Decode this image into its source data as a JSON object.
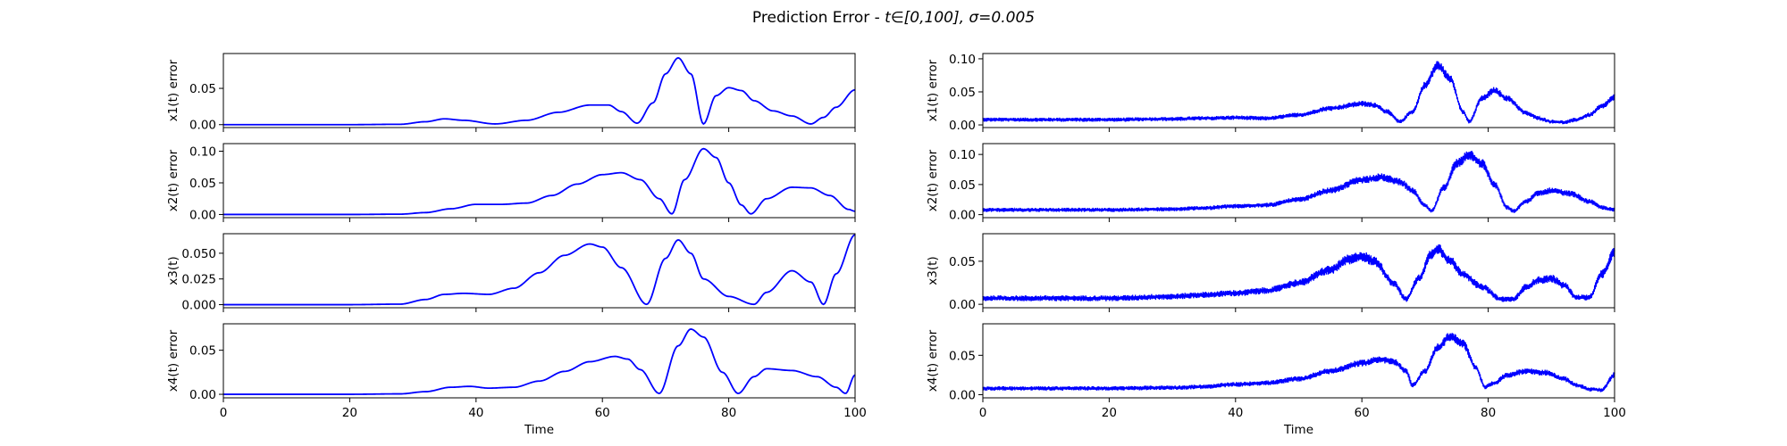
{
  "figure": {
    "title_prefix": "Prediction Error - ",
    "title_math": "t∈[0,100], σ=0.005",
    "colors": {
      "line": "#0000ff",
      "axes": "#000000",
      "background": "#ffffff"
    }
  },
  "chart_data": [
    {
      "type": "line",
      "panel": "left-row-1",
      "title": "",
      "xlabel": "",
      "ylabel": "x1(t) error",
      "xlim": [
        0,
        100
      ],
      "ylim": [
        -0.004,
        0.098
      ],
      "xticks": [
        0,
        20,
        40,
        60,
        80,
        100
      ],
      "show_xtick_labels": false,
      "yticks": [
        0.0,
        0.05
      ],
      "ytick_labels": [
        "0.00",
        "0.05"
      ],
      "noise": 0,
      "series": [
        {
          "x": [
            0,
            20,
            28,
            32,
            35,
            38,
            43,
            48,
            53,
            58,
            61,
            63,
            65.5,
            68,
            70,
            72,
            74,
            76,
            78,
            80,
            82,
            84,
            87,
            90,
            93,
            95,
            97,
            100
          ],
          "y": [
            0,
            0,
            0.0005,
            0.004,
            0.008,
            0.006,
            0.001,
            0.006,
            0.017,
            0.027,
            0.027,
            0.018,
            0.002,
            0.03,
            0.07,
            0.092,
            0.07,
            0.001,
            0.04,
            0.051,
            0.047,
            0.033,
            0.019,
            0.012,
            0.001,
            0.01,
            0.024,
            0.048
          ]
        }
      ]
    },
    {
      "type": "line",
      "panel": "left-row-2",
      "title": "",
      "xlabel": "",
      "ylabel": "x2(t) error",
      "xlim": [
        0,
        100
      ],
      "ylim": [
        -0.005,
        0.112
      ],
      "xticks": [
        0,
        20,
        40,
        60,
        80,
        100
      ],
      "show_xtick_labels": false,
      "yticks": [
        0.0,
        0.05,
        0.1
      ],
      "ytick_labels": [
        "0.00",
        "0.05",
        "0.10"
      ],
      "noise": 0,
      "series": [
        {
          "x": [
            0,
            20,
            28,
            32,
            36,
            40,
            44,
            48,
            52,
            56,
            60,
            63,
            66,
            69,
            71,
            73,
            76,
            78,
            80,
            82,
            83.5,
            86,
            90,
            93,
            96,
            99,
            100
          ],
          "y": [
            0,
            0,
            0.0005,
            0.003,
            0.009,
            0.016,
            0.016,
            0.018,
            0.03,
            0.048,
            0.063,
            0.066,
            0.055,
            0.025,
            0.001,
            0.055,
            0.104,
            0.09,
            0.05,
            0.015,
            0.001,
            0.025,
            0.043,
            0.042,
            0.03,
            0.008,
            0.005
          ]
        }
      ]
    },
    {
      "type": "line",
      "panel": "left-row-3",
      "title": "",
      "xlabel": "",
      "ylabel": "x3(t)",
      "xlim": [
        0,
        100
      ],
      "ylim": [
        -0.003,
        0.069
      ],
      "xticks": [
        0,
        20,
        40,
        60,
        80,
        100
      ],
      "show_xtick_labels": false,
      "yticks": [
        0.0,
        0.025,
        0.05
      ],
      "ytick_labels": [
        "0.000",
        "0.025",
        "0.050"
      ],
      "noise": 0,
      "series": [
        {
          "x": [
            0,
            20,
            28,
            32,
            35,
            38,
            42,
            46,
            50,
            54,
            58,
            60,
            63,
            67,
            70,
            72,
            74,
            76,
            80,
            84,
            86,
            90,
            93,
            95,
            97,
            100
          ],
          "y": [
            0,
            0,
            0.0005,
            0.005,
            0.01,
            0.011,
            0.01,
            0.016,
            0.031,
            0.048,
            0.059,
            0.056,
            0.036,
            0.0003,
            0.045,
            0.063,
            0.05,
            0.025,
            0.008,
            0.0003,
            0.012,
            0.033,
            0.022,
            0.0003,
            0.03,
            0.068
          ]
        }
      ]
    },
    {
      "type": "line",
      "panel": "left-row-4",
      "title": "",
      "xlabel": "Time",
      "ylabel": "x4(t) error",
      "xlim": [
        0,
        100
      ],
      "ylim": [
        -0.004,
        0.08
      ],
      "xticks": [
        0,
        20,
        40,
        60,
        80,
        100
      ],
      "show_xtick_labels": true,
      "yticks": [
        0.0,
        0.05
      ],
      "ytick_labels": [
        "0.00",
        "0.05"
      ],
      "noise": 0,
      "series": [
        {
          "x": [
            0,
            20,
            28,
            32,
            36,
            39,
            42,
            46,
            50,
            54,
            58,
            62,
            64,
            66,
            69,
            72,
            74,
            76,
            79,
            81.5,
            84,
            86,
            90,
            94,
            97,
            98.5,
            100
          ],
          "y": [
            0,
            0,
            0.0005,
            0.003,
            0.008,
            0.009,
            0.007,
            0.008,
            0.015,
            0.026,
            0.037,
            0.043,
            0.04,
            0.028,
            0.001,
            0.055,
            0.074,
            0.065,
            0.025,
            0.001,
            0.02,
            0.029,
            0.027,
            0.02,
            0.008,
            0.001,
            0.022
          ]
        }
      ]
    },
    {
      "type": "line",
      "panel": "right-row-1",
      "title": "",
      "xlabel": "",
      "ylabel": "x1(t) error",
      "xlim": [
        0,
        100
      ],
      "ylim": [
        -0.004,
        0.108
      ],
      "xticks": [
        0,
        20,
        40,
        60,
        80,
        100
      ],
      "show_xtick_labels": false,
      "yticks": [
        0.0,
        0.05,
        0.1
      ],
      "ytick_labels": [
        "0.00",
        "0.05",
        "0.10"
      ],
      "noise": 0.01,
      "series": [
        {
          "x": [
            0,
            20,
            30,
            35,
            40,
            45,
            50,
            55,
            60,
            62,
            64,
            66,
            68,
            70,
            72,
            74,
            76,
            77,
            79,
            81,
            83,
            86,
            88,
            90,
            92,
            94,
            96,
            98,
            100
          ],
          "y": [
            0.008,
            0.008,
            0.009,
            0.01,
            0.011,
            0.01,
            0.015,
            0.025,
            0.032,
            0.03,
            0.02,
            0.005,
            0.02,
            0.06,
            0.09,
            0.07,
            0.02,
            0.005,
            0.04,
            0.052,
            0.04,
            0.018,
            0.01,
            0.005,
            0.004,
            0.008,
            0.015,
            0.028,
            0.042
          ]
        }
      ]
    },
    {
      "type": "line",
      "panel": "right-row-2",
      "title": "",
      "xlabel": "",
      "ylabel": "x2(t) error",
      "xlim": [
        0,
        100
      ],
      "ylim": [
        -0.005,
        0.118
      ],
      "xticks": [
        0,
        20,
        40,
        60,
        80,
        100
      ],
      "show_xtick_labels": false,
      "yticks": [
        0.0,
        0.05,
        0.1
      ],
      "ytick_labels": [
        "0.00",
        "0.05",
        "0.10"
      ],
      "noise": 0.011,
      "series": [
        {
          "x": [
            0,
            20,
            30,
            35,
            40,
            45,
            50,
            55,
            60,
            63,
            66,
            68,
            70,
            71,
            73,
            75,
            77,
            79,
            81,
            83,
            84,
            86,
            88,
            90,
            93,
            96,
            98,
            100
          ],
          "y": [
            0.008,
            0.008,
            0.009,
            0.011,
            0.014,
            0.016,
            0.025,
            0.04,
            0.058,
            0.062,
            0.055,
            0.04,
            0.015,
            0.006,
            0.045,
            0.085,
            0.1,
            0.085,
            0.05,
            0.012,
            0.006,
            0.022,
            0.036,
            0.04,
            0.035,
            0.022,
            0.012,
            0.008
          ]
        }
      ]
    },
    {
      "type": "line",
      "panel": "right-row-3",
      "title": "",
      "xlabel": "",
      "ylabel": "x3(t)",
      "xlim": [
        0,
        100
      ],
      "ylim": [
        -0.004,
        0.082
      ],
      "xticks": [
        0,
        20,
        40,
        60,
        80,
        100
      ],
      "show_xtick_labels": false,
      "yticks": [
        0.0,
        0.05
      ],
      "ytick_labels": [
        "0.00",
        "0.05"
      ],
      "noise": 0.011,
      "series": [
        {
          "x": [
            0,
            20,
            30,
            35,
            40,
            45,
            50,
            55,
            58,
            60,
            62,
            65,
            67,
            69,
            71,
            72,
            74,
            76,
            79,
            82,
            84,
            86,
            88,
            90,
            92,
            94,
            96,
            98,
            100
          ],
          "y": [
            0.007,
            0.007,
            0.009,
            0.011,
            0.013,
            0.016,
            0.025,
            0.04,
            0.052,
            0.056,
            0.05,
            0.025,
            0.006,
            0.03,
            0.058,
            0.065,
            0.05,
            0.035,
            0.02,
            0.006,
            0.006,
            0.02,
            0.028,
            0.03,
            0.022,
            0.008,
            0.008,
            0.035,
            0.06
          ]
        }
      ]
    },
    {
      "type": "line",
      "panel": "right-row-4",
      "title": "",
      "xlabel": "Time",
      "ylabel": "x4(t) error",
      "xlim": [
        0,
        100
      ],
      "ylim": [
        -0.004,
        0.09
      ],
      "xticks": [
        0,
        20,
        40,
        60,
        80,
        100
      ],
      "show_xtick_labels": true,
      "yticks": [
        0.0,
        0.05
      ],
      "ytick_labels": [
        "0.00",
        "0.05"
      ],
      "noise": 0.009,
      "series": [
        {
          "x": [
            0,
            20,
            30,
            35,
            40,
            45,
            50,
            55,
            60,
            63,
            65,
            67,
            68,
            70,
            72,
            74,
            76,
            78,
            79.5,
            81,
            83,
            86,
            89,
            92,
            94,
            96,
            98,
            100
          ],
          "y": [
            0.008,
            0.008,
            0.009,
            0.01,
            0.013,
            0.015,
            0.02,
            0.03,
            0.04,
            0.045,
            0.042,
            0.03,
            0.012,
            0.03,
            0.06,
            0.074,
            0.065,
            0.035,
            0.01,
            0.015,
            0.025,
            0.03,
            0.028,
            0.02,
            0.012,
            0.007,
            0.006,
            0.025
          ]
        }
      ]
    }
  ]
}
